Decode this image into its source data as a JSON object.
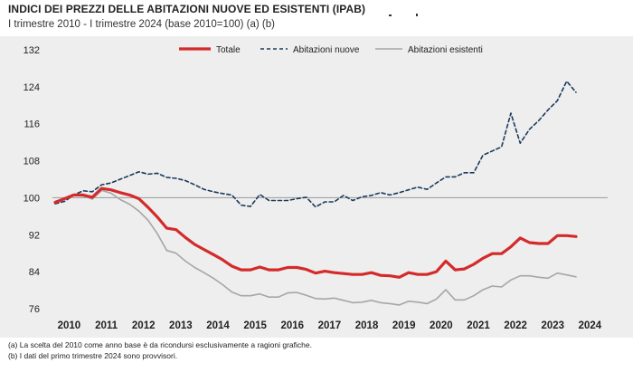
{
  "header": {
    "title": "INDICI DEI PREZZI DELLE ABITAZIONI NUOVE ED ESISTENTI (IPAB)",
    "subtitle": "I trimestre 2010 - I trimestre 2024 (base 2010=100) (a) (b)"
  },
  "notes": [
    "(a)  La scelta del 2010 come anno base è da ricondursi esclusivamente a ragioni grafiche.",
    "(b)  I dati del primo trimestre 2024 sono provvisori."
  ],
  "colors": {
    "totale": "#d42a2a",
    "nuove": "#1b3a5c",
    "esistenti": "#a6a6a6",
    "reference": "#9a9a9a",
    "panel": "#eeeeee"
  },
  "chart_data": {
    "type": "line",
    "ylim": [
      76,
      132
    ],
    "yticks": [
      76,
      84,
      92,
      100,
      108,
      116,
      124,
      132
    ],
    "xlabels": [
      "2010",
      "2011",
      "2012",
      "2013",
      "2014",
      "2015",
      "2016",
      "2017",
      "2018",
      "2019",
      "2020",
      "2021",
      "2022",
      "2023",
      "2024"
    ],
    "x": [
      "2010T1",
      "2010T2",
      "2010T3",
      "2010T4",
      "2011T1",
      "2011T2",
      "2011T3",
      "2011T4",
      "2012T1",
      "2012T2",
      "2012T3",
      "2012T4",
      "2013T1",
      "2013T2",
      "2013T3",
      "2013T4",
      "2014T1",
      "2014T2",
      "2014T3",
      "2014T4",
      "2015T1",
      "2015T2",
      "2015T3",
      "2015T4",
      "2016T1",
      "2016T2",
      "2016T3",
      "2016T4",
      "2017T1",
      "2017T2",
      "2017T3",
      "2017T4",
      "2018T1",
      "2018T2",
      "2018T3",
      "2018T4",
      "2019T1",
      "2019T2",
      "2019T3",
      "2019T4",
      "2020T1",
      "2020T2",
      "2020T3",
      "2020T4",
      "2021T1",
      "2021T2",
      "2021T3",
      "2021T4",
      "2022T1",
      "2022T2",
      "2022T3",
      "2022T4",
      "2023T1",
      "2023T2",
      "2023T3",
      "2023T4",
      "2024T1"
    ],
    "reference_line": 100,
    "legend_position": "top",
    "series": [
      {
        "name": "Totale",
        "style": "solid-thick",
        "values": [
          99.0,
          99.8,
          100.6,
          100.6,
          100.1,
          102.0,
          101.7,
          101.1,
          100.6,
          99.8,
          97.9,
          95.8,
          93.4,
          93.1,
          91.4,
          89.9,
          88.8,
          87.7,
          86.6,
          85.2,
          84.4,
          84.4,
          85.0,
          84.4,
          84.4,
          84.9,
          84.9,
          84.5,
          83.7,
          84.1,
          83.8,
          83.6,
          83.4,
          83.4,
          83.8,
          83.2,
          83.1,
          82.8,
          83.8,
          83.4,
          83.4,
          84.0,
          86.3,
          84.4,
          84.6,
          85.6,
          86.9,
          87.9,
          87.9,
          89.4,
          91.3,
          90.3,
          90.1,
          90.1,
          91.8,
          91.8,
          91.6
        ]
      },
      {
        "name": "Abitazioni nuove",
        "style": "dashed",
        "values": [
          98.7,
          99.2,
          100.6,
          101.5,
          101.3,
          102.8,
          103.2,
          104.0,
          104.8,
          105.6,
          105.1,
          105.3,
          104.4,
          104.2,
          103.7,
          102.8,
          101.8,
          101.3,
          100.9,
          100.6,
          98.4,
          98.1,
          100.7,
          99.4,
          99.4,
          99.4,
          99.8,
          100.1,
          98.0,
          99.1,
          99.1,
          100.5,
          99.4,
          100.2,
          100.5,
          101.1,
          100.6,
          101.1,
          101.7,
          102.3,
          101.8,
          103.2,
          104.5,
          104.5,
          105.4,
          105.4,
          109.2,
          110.1,
          111.0,
          118.3,
          111.8,
          114.8,
          116.7,
          119.0,
          121.0,
          125.2,
          122.8
        ]
      },
      {
        "name": "Abitazioni esistenti",
        "style": "solid-thin",
        "values": [
          99.2,
          99.8,
          100.5,
          100.4,
          99.7,
          101.6,
          101.0,
          99.6,
          98.6,
          97.1,
          95.1,
          92.2,
          88.6,
          88.0,
          86.3,
          84.9,
          83.8,
          82.6,
          81.2,
          79.6,
          78.8,
          78.8,
          79.2,
          78.5,
          78.5,
          79.4,
          79.5,
          78.9,
          78.2,
          78.1,
          78.3,
          77.8,
          77.3,
          77.4,
          77.8,
          77.3,
          77.1,
          76.8,
          77.6,
          77.4,
          77.1,
          78.1,
          80.1,
          77.9,
          77.9,
          78.8,
          80.1,
          80.9,
          80.7,
          82.2,
          83.1,
          83.1,
          82.8,
          82.6,
          83.7,
          83.3,
          82.9
        ]
      }
    ]
  }
}
